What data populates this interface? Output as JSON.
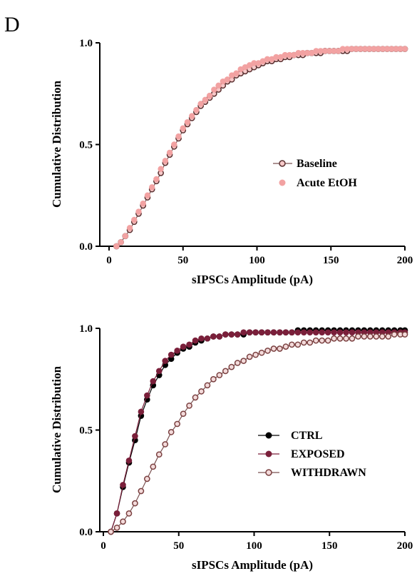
{
  "panel_label": "D",
  "colors": {
    "baseline_marker_edge": "#5a3030",
    "baseline_fill": "#f6c9c9",
    "acute_etoh": "#f2a2a2",
    "ctrl": "#000000",
    "exposed": "#7a1f3a",
    "withdrawn_edge": "#7a4040",
    "withdrawn_fill": "#f3dada",
    "line": "#7a5050"
  },
  "chart_data": [
    {
      "type": "scatter",
      "xlabel": "sIPSCs Amplitude (pA)",
      "ylabel": "Cumulative Distribution",
      "xlim": [
        0,
        200
      ],
      "ylim": [
        0,
        1.0
      ],
      "xticks": [
        "0",
        "50",
        "100",
        "150",
        "200"
      ],
      "yticks": [
        "0.0",
        "0.5",
        "1.0"
      ],
      "legend_position": "right-middle",
      "grid": false,
      "series": [
        {
          "name": "Baseline",
          "x": [
            5,
            8,
            11,
            14,
            17,
            20,
            23,
            26,
            29,
            32,
            35,
            38,
            41,
            44,
            47,
            50,
            53,
            56,
            59,
            62,
            65,
            68,
            71,
            74,
            77,
            80,
            83,
            86,
            89,
            92,
            95,
            98,
            101,
            104,
            107,
            110,
            113,
            116,
            119,
            122,
            125,
            128,
            131,
            134,
            137,
            140,
            143,
            146,
            149,
            152,
            155,
            158,
            161,
            164,
            167,
            170,
            173,
            176,
            179,
            182,
            185,
            188,
            191,
            194,
            197,
            200
          ],
          "y": [
            0.0,
            0.02,
            0.05,
            0.08,
            0.12,
            0.16,
            0.2,
            0.24,
            0.28,
            0.32,
            0.36,
            0.41,
            0.45,
            0.49,
            0.53,
            0.57,
            0.6,
            0.63,
            0.66,
            0.69,
            0.71,
            0.73,
            0.75,
            0.77,
            0.79,
            0.81,
            0.82,
            0.84,
            0.85,
            0.86,
            0.87,
            0.88,
            0.89,
            0.9,
            0.91,
            0.91,
            0.92,
            0.92,
            0.93,
            0.93,
            0.94,
            0.94,
            0.94,
            0.95,
            0.95,
            0.95,
            0.95,
            0.96,
            0.96,
            0.96,
            0.96,
            0.96,
            0.96,
            0.97,
            0.97,
            0.97,
            0.97,
            0.97,
            0.97,
            0.97,
            0.97,
            0.97,
            0.97,
            0.97,
            0.97,
            0.97
          ]
        },
        {
          "name": "Acute EtOH",
          "x": [
            5,
            8,
            11,
            14,
            17,
            20,
            23,
            26,
            29,
            32,
            35,
            38,
            41,
            44,
            47,
            50,
            53,
            56,
            59,
            62,
            65,
            68,
            71,
            74,
            77,
            80,
            83,
            86,
            89,
            92,
            95,
            98,
            101,
            104,
            107,
            110,
            113,
            116,
            119,
            122,
            125,
            128,
            131,
            134,
            137,
            140,
            143,
            146,
            149,
            152,
            155,
            158,
            161,
            164,
            167,
            170,
            173,
            176,
            179,
            182,
            185,
            188,
            191,
            194,
            197,
            200
          ],
          "y": [
            0.0,
            0.02,
            0.05,
            0.09,
            0.13,
            0.17,
            0.21,
            0.25,
            0.29,
            0.33,
            0.38,
            0.42,
            0.46,
            0.5,
            0.54,
            0.58,
            0.61,
            0.64,
            0.67,
            0.7,
            0.72,
            0.74,
            0.77,
            0.79,
            0.81,
            0.82,
            0.84,
            0.85,
            0.87,
            0.88,
            0.89,
            0.9,
            0.9,
            0.91,
            0.92,
            0.92,
            0.93,
            0.93,
            0.94,
            0.94,
            0.94,
            0.95,
            0.95,
            0.95,
            0.95,
            0.96,
            0.96,
            0.96,
            0.96,
            0.96,
            0.96,
            0.97,
            0.97,
            0.97,
            0.97,
            0.97,
            0.97,
            0.97,
            0.97,
            0.97,
            0.97,
            0.97,
            0.97,
            0.97,
            0.97,
            0.97
          ]
        }
      ]
    },
    {
      "type": "scatter",
      "xlabel": "sIPSCs Amplitude (pA)",
      "ylabel": "Cumulative Distribution",
      "xlim": [
        0,
        200
      ],
      "ylim": [
        0,
        1.0
      ],
      "xticks": [
        "0",
        "50",
        "100",
        "150",
        "200"
      ],
      "yticks": [
        "0.0",
        "0.5",
        "1.0"
      ],
      "legend_position": "right-middle",
      "grid": false,
      "series": [
        {
          "name": "CTRL",
          "x": [
            5,
            9,
            13,
            17,
            21,
            25,
            29,
            33,
            37,
            41,
            45,
            49,
            53,
            57,
            61,
            65,
            69,
            73,
            77,
            81,
            85,
            89,
            93,
            97,
            101,
            105,
            109,
            113,
            117,
            121,
            125,
            129,
            133,
            137,
            141,
            145,
            149,
            153,
            157,
            161,
            165,
            169,
            173,
            177,
            181,
            185,
            189,
            193,
            197,
            200
          ],
          "y": [
            0.0,
            0.09,
            0.22,
            0.34,
            0.45,
            0.57,
            0.65,
            0.72,
            0.77,
            0.82,
            0.85,
            0.88,
            0.9,
            0.91,
            0.93,
            0.94,
            0.95,
            0.96,
            0.96,
            0.97,
            0.97,
            0.97,
            0.97,
            0.98,
            0.98,
            0.98,
            0.98,
            0.98,
            0.98,
            0.98,
            0.98,
            0.99,
            0.99,
            0.99,
            0.99,
            0.99,
            0.99,
            0.99,
            0.99,
            0.99,
            0.99,
            0.99,
            0.99,
            0.99,
            0.99,
            0.99,
            0.99,
            0.99,
            0.99,
            0.99
          ]
        },
        {
          "name": "EXPOSED",
          "x": [
            5,
            9,
            13,
            17,
            21,
            25,
            29,
            33,
            37,
            41,
            45,
            49,
            53,
            57,
            61,
            65,
            69,
            73,
            77,
            81,
            85,
            89,
            93,
            97,
            101,
            105,
            109,
            113,
            117,
            121,
            125,
            129,
            133,
            137,
            141,
            145,
            149,
            153,
            157,
            161,
            165,
            169,
            173,
            177,
            181,
            185,
            189,
            193,
            197,
            200
          ],
          "y": [
            0.0,
            0.09,
            0.23,
            0.35,
            0.47,
            0.59,
            0.67,
            0.74,
            0.79,
            0.84,
            0.87,
            0.89,
            0.91,
            0.92,
            0.94,
            0.95,
            0.95,
            0.96,
            0.96,
            0.97,
            0.97,
            0.97,
            0.98,
            0.98,
            0.98,
            0.98,
            0.98,
            0.98,
            0.98,
            0.98,
            0.98,
            0.98,
            0.98,
            0.98,
            0.98,
            0.98,
            0.98,
            0.98,
            0.98,
            0.98,
            0.98,
            0.98,
            0.98,
            0.98,
            0.98,
            0.98,
            0.98,
            0.98,
            0.98,
            0.98
          ]
        },
        {
          "name": "WITHDRAWN",
          "x": [
            5,
            9,
            13,
            17,
            21,
            25,
            29,
            33,
            37,
            41,
            45,
            49,
            53,
            57,
            61,
            65,
            69,
            73,
            77,
            81,
            85,
            89,
            93,
            97,
            101,
            105,
            109,
            113,
            117,
            121,
            125,
            129,
            133,
            137,
            141,
            145,
            149,
            153,
            157,
            161,
            165,
            169,
            173,
            177,
            181,
            185,
            189,
            193,
            197,
            200
          ],
          "y": [
            0.0,
            0.02,
            0.05,
            0.09,
            0.14,
            0.2,
            0.26,
            0.32,
            0.38,
            0.43,
            0.49,
            0.53,
            0.58,
            0.62,
            0.66,
            0.69,
            0.72,
            0.75,
            0.77,
            0.79,
            0.81,
            0.83,
            0.84,
            0.86,
            0.87,
            0.88,
            0.89,
            0.9,
            0.9,
            0.91,
            0.92,
            0.92,
            0.93,
            0.93,
            0.94,
            0.94,
            0.94,
            0.95,
            0.95,
            0.95,
            0.95,
            0.96,
            0.96,
            0.96,
            0.96,
            0.96,
            0.96,
            0.97,
            0.97,
            0.97
          ]
        }
      ]
    }
  ]
}
